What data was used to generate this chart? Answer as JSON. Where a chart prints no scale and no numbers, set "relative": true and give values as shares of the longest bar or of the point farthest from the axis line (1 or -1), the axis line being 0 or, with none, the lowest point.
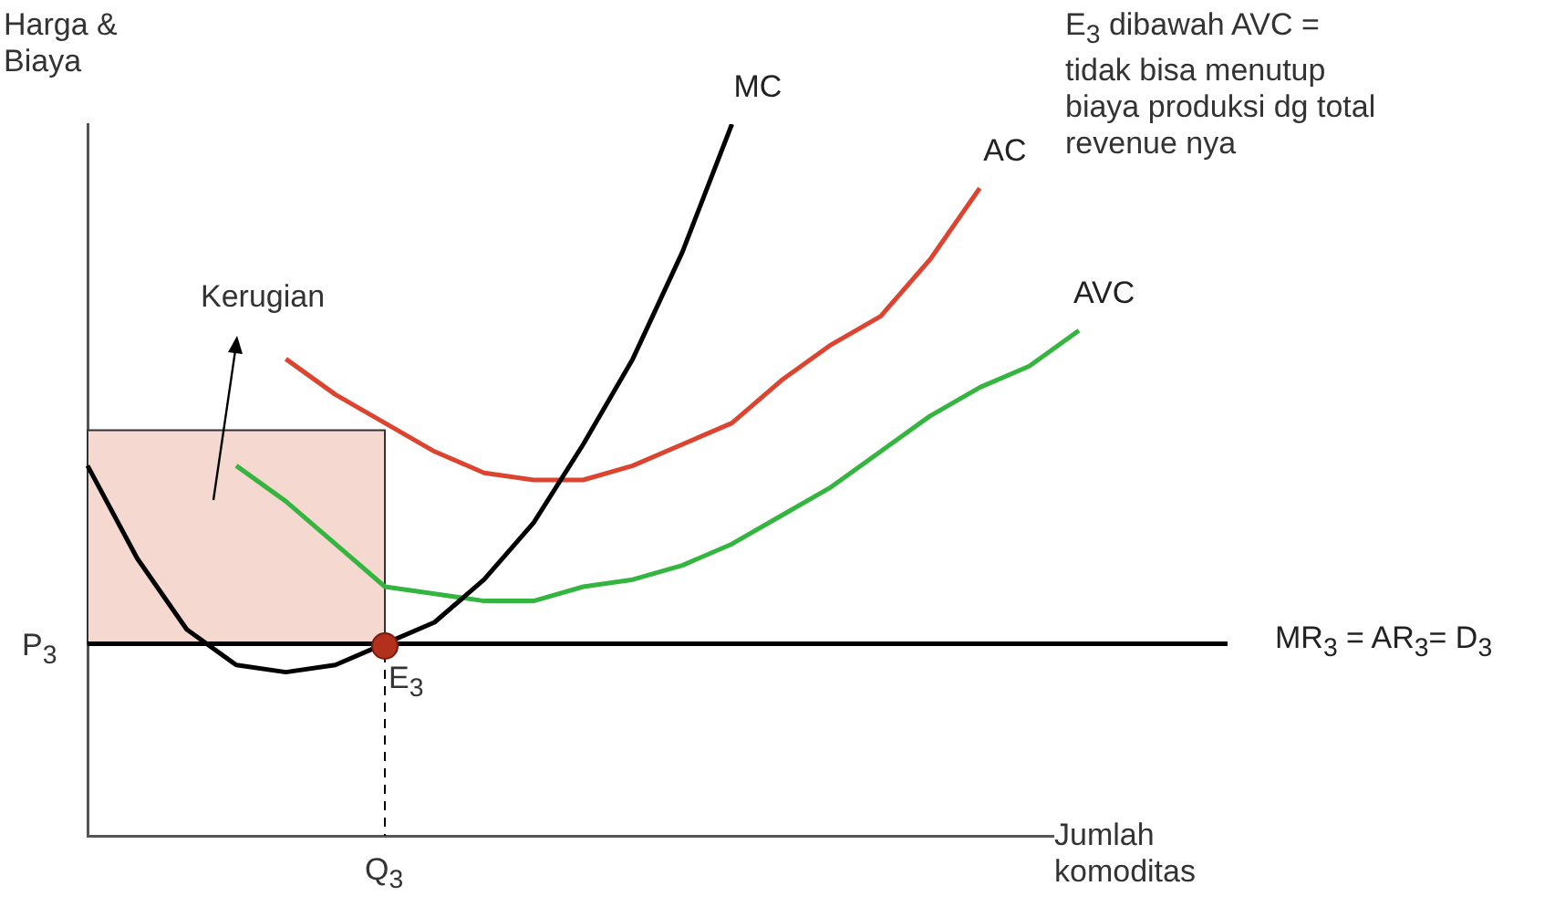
{
  "chart_data": {
    "type": "line",
    "relative": true,
    "xlabel": "Jumlah komoditas",
    "ylabel": "Harga & Biaya",
    "categories": [
      null,
      null,
      null,
      null,
      null,
      null,
      null,
      null,
      null,
      null,
      null,
      null,
      null,
      null,
      null,
      null,
      null,
      null,
      null,
      null,
      null,
      null,
      null,
      null
    ],
    "series": [
      {
        "name": "MC",
        "color": "#000000",
        "values": [
          0.52,
          0.39,
          0.29,
          0.24,
          0.23,
          0.24,
          0.27,
          0.3,
          0.36,
          0.44,
          0.55,
          0.67,
          0.82,
          1.0,
          null,
          null,
          null,
          null,
          null,
          null,
          null,
          null,
          null,
          null
        ]
      },
      {
        "name": "AC",
        "color": "#dd4430",
        "values": [
          null,
          null,
          null,
          null,
          0.67,
          0.62,
          0.58,
          0.54,
          0.51,
          0.5,
          0.5,
          0.52,
          0.55,
          0.58,
          0.64,
          0.69,
          0.73,
          0.81,
          0.91,
          null,
          null,
          null,
          null,
          null
        ]
      },
      {
        "name": "AVC",
        "color": "#33b53f",
        "values": [
          null,
          null,
          null,
          0.52,
          0.47,
          0.41,
          0.35,
          0.34,
          0.33,
          0.33,
          0.35,
          0.36,
          0.38,
          0.41,
          0.45,
          0.49,
          0.54,
          0.59,
          0.63,
          0.66,
          0.71,
          null,
          null,
          null
        ]
      },
      {
        "name": "MR$_{3}$ = AR$_{3}$= D$_{3}$",
        "color": "#000000",
        "values": [
          0.27,
          0.27,
          0.27,
          0.27,
          0.27,
          0.27,
          0.27,
          0.27,
          0.27,
          0.27,
          0.27,
          0.27,
          0.27,
          0.27,
          0.27,
          0.27,
          0.27,
          0.27,
          0.27,
          0.27,
          0.27,
          0.27,
          0.27,
          0.27
        ]
      }
    ],
    "bands": [
      {
        "axis": "y",
        "from": 0.27,
        "to": 0.57,
        "label": "Kerugian",
        "color": "#f5d8cf"
      }
    ],
    "annotations": [
      "E$_{3}$ dibawah AVC = tidak bisa menutup biaya produksi dg total revenue nya",
      "P$_{3}$",
      "E$_{3}$",
      "Q$_{3}$"
    ],
    "grid": false,
    "legend": false,
    "marker": "none",
    "line_style": "solid"
  }
}
